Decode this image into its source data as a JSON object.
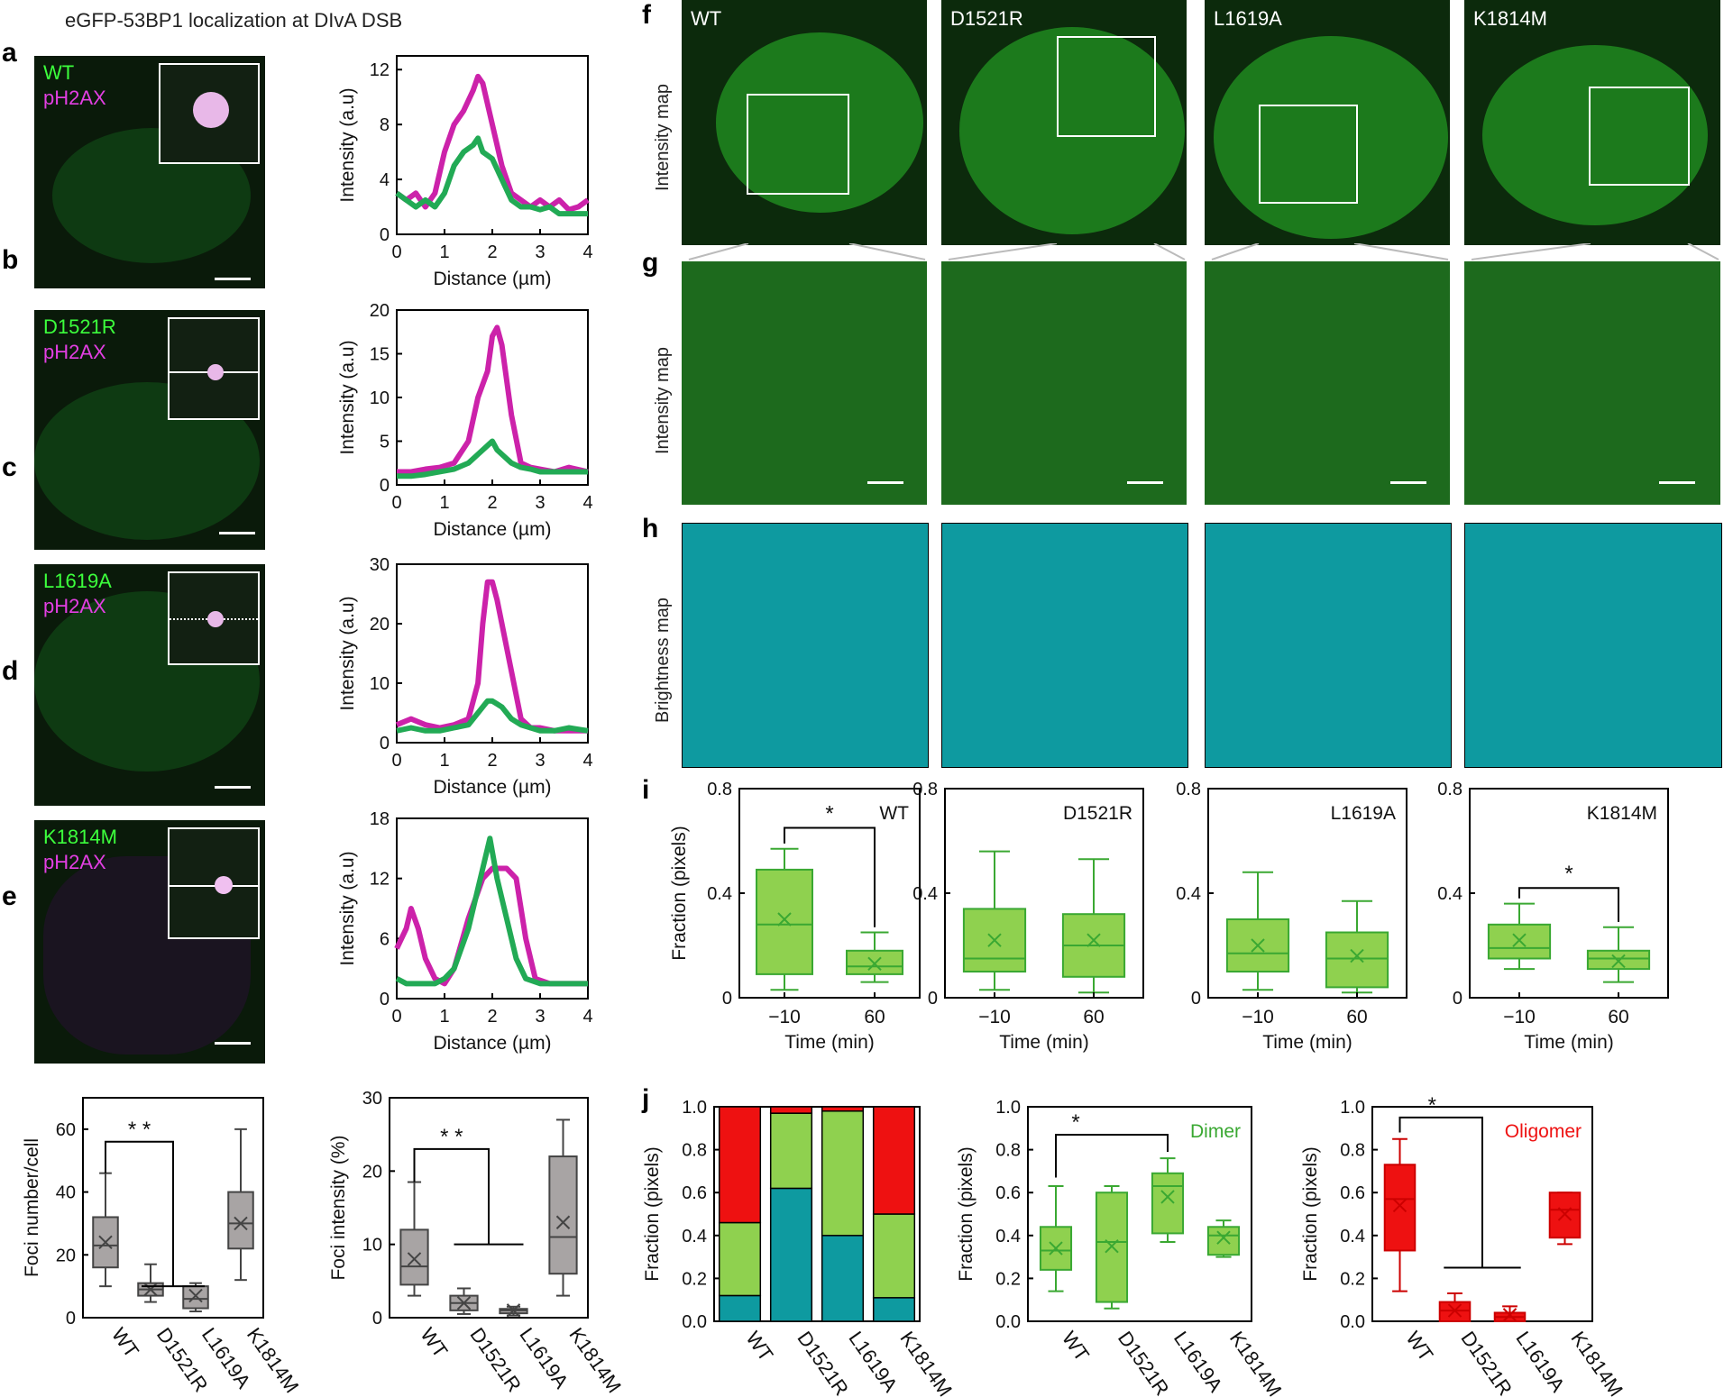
{
  "panel_letters": {
    "a": "a",
    "b": "b",
    "c": "c",
    "d": "d",
    "e": "e",
    "f": "f",
    "g": "g",
    "h": "h",
    "i": "i",
    "j": "j"
  },
  "header_title": "eGFP-53BP1 localization at DIvA DSB",
  "micrographs_left": [
    {
      "green_label": "WT",
      "magenta_label": "pH2AX"
    },
    {
      "green_label": "D1521R",
      "magenta_label": "pH2AX"
    },
    {
      "green_label": "L1619A",
      "magenta_label": "pH2AX"
    },
    {
      "green_label": "K1814M",
      "magenta_label": "pH2AX"
    }
  ],
  "f_labels": [
    "WT",
    "D1521R",
    "L1619A",
    "K1814M"
  ],
  "row_labels": {
    "f": "Intensity map",
    "g": "Intensity map",
    "h": "Brightness map"
  },
  "colors": {
    "green": "#22aa55",
    "magenta": "#cc22aa",
    "box_green": "#8fd14f",
    "box_green_edge": "#3aa832",
    "red": "#ee1111",
    "teal": "#0e9aa0",
    "lime": "#8fd14f",
    "gray_box": "#a8a4a4"
  },
  "chart_data": [
    {
      "id": "a",
      "type": "line",
      "xlabel": "Distance (µm)",
      "ylabel": "Intensity (a.u)",
      "xlim": [
        0,
        4
      ],
      "ylim": [
        0,
        13
      ],
      "xticks": [
        0,
        1,
        2,
        3,
        4
      ],
      "yticks": [
        0,
        4,
        8,
        12
      ],
      "series": [
        {
          "color": "magenta",
          "x": [
            0,
            0.2,
            0.4,
            0.6,
            0.8,
            1.0,
            1.2,
            1.4,
            1.6,
            1.7,
            1.8,
            2.0,
            2.2,
            2.4,
            2.6,
            2.8,
            3.0,
            3.2,
            3.4,
            3.6,
            3.8,
            4.0
          ],
          "y": [
            3,
            2.5,
            3,
            2,
            3,
            6,
            8,
            9,
            10.5,
            11.5,
            11,
            8,
            5,
            3,
            2.5,
            2,
            2.5,
            2,
            2.5,
            1.8,
            2,
            2.5
          ]
        },
        {
          "color": "green",
          "x": [
            0,
            0.2,
            0.4,
            0.6,
            0.8,
            1.0,
            1.2,
            1.4,
            1.6,
            1.7,
            1.8,
            2.0,
            2.2,
            2.4,
            2.6,
            2.8,
            3.0,
            3.2,
            3.4,
            3.6,
            3.8,
            4.0
          ],
          "y": [
            3,
            2.5,
            2,
            2.5,
            2,
            3,
            5,
            6,
            6.5,
            7,
            6,
            5.5,
            4,
            2.5,
            2,
            2,
            1.8,
            2,
            1.5,
            1.5,
            1.5,
            1.5
          ]
        }
      ]
    },
    {
      "id": "b",
      "type": "line",
      "xlabel": "Distance (µm)",
      "ylabel": "Intensity (a.u)",
      "xlim": [
        0,
        4
      ],
      "ylim": [
        0,
        20
      ],
      "xticks": [
        0,
        1,
        2,
        3,
        4
      ],
      "yticks": [
        0,
        5,
        10,
        15,
        20
      ],
      "series": [
        {
          "color": "magenta",
          "x": [
            0,
            0.3,
            0.6,
            0.9,
            1.2,
            1.5,
            1.7,
            1.9,
            2.0,
            2.1,
            2.2,
            2.4,
            2.6,
            2.8,
            3.0,
            3.3,
            3.6,
            4.0
          ],
          "y": [
            1.5,
            1.5,
            1.8,
            2,
            2.5,
            5,
            10,
            13,
            17,
            18,
            16,
            8,
            2.5,
            2,
            1.8,
            1.5,
            2,
            1.5
          ]
        },
        {
          "color": "green",
          "x": [
            0,
            0.3,
            0.6,
            0.9,
            1.2,
            1.5,
            1.7,
            1.9,
            2.0,
            2.1,
            2.2,
            2.4,
            2.6,
            2.8,
            3.0,
            3.3,
            3.6,
            4.0
          ],
          "y": [
            1,
            1,
            1.2,
            1.5,
            1.8,
            2.5,
            3.5,
            4.5,
            5,
            4,
            3.5,
            2.5,
            2,
            1.8,
            1.5,
            1.5,
            1.5,
            1.5
          ]
        }
      ]
    },
    {
      "id": "c",
      "type": "line",
      "xlabel": "Distance (µm)",
      "ylabel": "Intensity (a.u)",
      "xlim": [
        0,
        4
      ],
      "ylim": [
        0,
        30
      ],
      "xticks": [
        0,
        1,
        2,
        3,
        4
      ],
      "yticks": [
        0,
        10,
        20,
        30
      ],
      "series": [
        {
          "color": "magenta",
          "x": [
            0,
            0.3,
            0.6,
            0.9,
            1.2,
            1.5,
            1.7,
            1.8,
            1.9,
            2.0,
            2.1,
            2.2,
            2.4,
            2.6,
            2.8,
            3.0,
            3.3,
            3.6,
            4.0
          ],
          "y": [
            3,
            4,
            3,
            2.5,
            3,
            4,
            10,
            20,
            27,
            27,
            24,
            20,
            12,
            4,
            2.5,
            2.5,
            2,
            2,
            2
          ]
        },
        {
          "color": "green",
          "x": [
            0,
            0.3,
            0.6,
            0.9,
            1.2,
            1.5,
            1.7,
            1.8,
            1.9,
            2.0,
            2.1,
            2.2,
            2.4,
            2.6,
            2.8,
            3.0,
            3.3,
            3.6,
            4.0
          ],
          "y": [
            2,
            2.5,
            2,
            2,
            2.5,
            3,
            5,
            6,
            7,
            7,
            6.5,
            6,
            4,
            3,
            2.5,
            2,
            2,
            2.5,
            2
          ]
        }
      ]
    },
    {
      "id": "d",
      "type": "line",
      "xlabel": "Distance (µm)",
      "ylabel": "Intensity (a.u)",
      "xlim": [
        0,
        4
      ],
      "ylim": [
        0,
        18
      ],
      "xticks": [
        0,
        1,
        2,
        3,
        4
      ],
      "yticks": [
        0,
        6,
        12,
        18
      ],
      "series": [
        {
          "color": "magenta",
          "x": [
            0,
            0.2,
            0.3,
            0.45,
            0.6,
            0.8,
            1.0,
            1.2,
            1.5,
            1.8,
            2.0,
            2.3,
            2.5,
            2.7,
            2.9,
            3.2,
            3.5,
            4.0
          ],
          "y": [
            5,
            7,
            9,
            7,
            4,
            2,
            1.5,
            3,
            8,
            12,
            13,
            13,
            12,
            6,
            2,
            1.5,
            1.5,
            1.5
          ]
        },
        {
          "color": "green",
          "x": [
            0,
            0.2,
            0.4,
            0.6,
            0.8,
            1.0,
            1.2,
            1.5,
            1.8,
            1.95,
            2.1,
            2.3,
            2.5,
            2.7,
            3.0,
            3.5,
            4.0
          ],
          "y": [
            2,
            1.5,
            1.5,
            1.5,
            1.5,
            2,
            3,
            7,
            13,
            16,
            12,
            8,
            4,
            2,
            1.5,
            1.5,
            1.5
          ]
        }
      ]
    },
    {
      "id": "e1",
      "type": "box",
      "ylabel": "Foci number/cell",
      "ylim": [
        0,
        70
      ],
      "yticks": [
        0,
        20,
        40,
        60
      ],
      "categories": [
        "WT",
        "D1521R",
        "L1619A",
        "K1814M"
      ],
      "boxes": [
        {
          "min": 10,
          "q1": 16,
          "median": 23,
          "q3": 32,
          "max": 46,
          "mean": 24
        },
        {
          "min": 5,
          "q1": 7,
          "median": 9,
          "q3": 11,
          "max": 17,
          "mean": 9
        },
        {
          "min": 2,
          "q1": 3,
          "median": 6,
          "q3": 10,
          "max": 11,
          "mean": 7
        },
        {
          "min": 12,
          "q1": 22,
          "median": 30,
          "q3": 40,
          "max": 60,
          "mean": 30
        }
      ],
      "significance": "* *"
    },
    {
      "id": "e2",
      "type": "box",
      "ylabel": "Foci intensity (%)",
      "ylim": [
        0,
        30
      ],
      "yticks": [
        0,
        10,
        20,
        30
      ],
      "categories": [
        "WT",
        "D1521R",
        "L1619A",
        "K1814M"
      ],
      "boxes": [
        {
          "min": 3,
          "q1": 4.5,
          "median": 7,
          "q3": 12,
          "max": 18.5,
          "mean": 8
        },
        {
          "min": 0.5,
          "q1": 1,
          "median": 2,
          "q3": 3,
          "max": 4,
          "mean": 2
        },
        {
          "min": 0.3,
          "q1": 0.6,
          "median": 1,
          "q3": 1.2,
          "max": 1.5,
          "mean": 1
        },
        {
          "min": 3,
          "q1": 6,
          "median": 11,
          "q3": 22,
          "max": 27,
          "mean": 13
        }
      ],
      "significance": "* *"
    },
    {
      "id": "i1",
      "type": "box",
      "label": "WT",
      "ylabel": "Fraction (pixels)",
      "xlabel": "Time (min)",
      "ylim": [
        0,
        0.8
      ],
      "yticks": [
        0,
        0.4,
        0.8
      ],
      "categories": [
        "−10",
        "60"
      ],
      "boxes": [
        {
          "min": 0.03,
          "q1": 0.09,
          "median": 0.28,
          "q3": 0.49,
          "max": 0.57,
          "mean": 0.3
        },
        {
          "min": 0.06,
          "q1": 0.09,
          "median": 0.12,
          "q3": 0.18,
          "max": 0.25,
          "mean": 0.13
        }
      ],
      "significance": "*"
    },
    {
      "id": "i2",
      "type": "box",
      "label": "D1521R",
      "xlabel": "Time (min)",
      "ylim": [
        0,
        0.8
      ],
      "yticks": [
        0,
        0.4,
        0.8
      ],
      "categories": [
        "−10",
        "60"
      ],
      "boxes": [
        {
          "min": 0.03,
          "q1": 0.1,
          "median": 0.15,
          "q3": 0.34,
          "max": 0.56,
          "mean": 0.22
        },
        {
          "min": 0.02,
          "q1": 0.08,
          "median": 0.2,
          "q3": 0.32,
          "max": 0.53,
          "mean": 0.22
        }
      ]
    },
    {
      "id": "i3",
      "type": "box",
      "label": "L1619A",
      "xlabel": "Time (min)",
      "ylim": [
        0,
        0.8
      ],
      "yticks": [
        0,
        0.4,
        0.8
      ],
      "categories": [
        "−10",
        "60"
      ],
      "boxes": [
        {
          "min": 0.03,
          "q1": 0.1,
          "median": 0.17,
          "q3": 0.3,
          "max": 0.48,
          "mean": 0.2
        },
        {
          "min": 0.02,
          "q1": 0.04,
          "median": 0.15,
          "q3": 0.25,
          "max": 0.37,
          "mean": 0.16
        }
      ]
    },
    {
      "id": "i4",
      "type": "box",
      "label": "K1814M",
      "xlabel": "Time (min)",
      "ylim": [
        0,
        0.8
      ],
      "yticks": [
        0,
        0.4,
        0.8
      ],
      "categories": [
        "−10",
        "60"
      ],
      "boxes": [
        {
          "min": 0.11,
          "q1": 0.15,
          "median": 0.19,
          "q3": 0.28,
          "max": 0.36,
          "mean": 0.22
        },
        {
          "min": 0.06,
          "q1": 0.11,
          "median": 0.15,
          "q3": 0.18,
          "max": 0.27,
          "mean": 0.14
        }
      ],
      "significance": "*"
    },
    {
      "id": "j1",
      "type": "bar",
      "stacked": true,
      "ylabel": "Fraction (pixels)",
      "ylim": [
        0,
        1
      ],
      "yticks": [
        0,
        0.2,
        0.4,
        0.6,
        0.8,
        1.0
      ],
      "categories": [
        "WT",
        "D1521R",
        "L1619A",
        "K1814M"
      ],
      "series": [
        {
          "color": "teal",
          "values": [
            0.12,
            0.62,
            0.4,
            0.11
          ]
        },
        {
          "color": "lime",
          "values": [
            0.34,
            0.35,
            0.58,
            0.39
          ]
        },
        {
          "color": "red",
          "values": [
            0.54,
            0.03,
            0.02,
            0.5
          ]
        }
      ]
    },
    {
      "id": "j2",
      "type": "box",
      "label": "Dimer",
      "ylabel": "Fraction (pixels)",
      "ylim": [
        0,
        1
      ],
      "yticks": [
        0,
        0.2,
        0.4,
        0.6,
        0.8,
        1.0
      ],
      "categories": [
        "WT",
        "D1521R",
        "L1619A",
        "K1814M"
      ],
      "boxes": [
        {
          "min": 0.14,
          "q1": 0.24,
          "median": 0.33,
          "q3": 0.44,
          "max": 0.63,
          "mean": 0.34
        },
        {
          "min": 0.06,
          "q1": 0.09,
          "median": 0.37,
          "q3": 0.6,
          "max": 0.63,
          "mean": 0.35
        },
        {
          "min": 0.37,
          "q1": 0.41,
          "median": 0.63,
          "q3": 0.69,
          "max": 0.76,
          "mean": 0.58
        },
        {
          "min": 0.3,
          "q1": 0.31,
          "median": 0.4,
          "q3": 0.44,
          "max": 0.47,
          "mean": 0.39
        }
      ],
      "significance": "*"
    },
    {
      "id": "j3",
      "type": "box",
      "label": "Oligomer",
      "ylabel": "Fraction (pixels)",
      "ylim": [
        0,
        1
      ],
      "yticks": [
        0,
        0.2,
        0.4,
        0.6,
        0.8,
        1.0
      ],
      "categories": [
        "WT",
        "D1521R",
        "L1619A",
        "K1814M"
      ],
      "boxes": [
        {
          "min": 0.14,
          "q1": 0.33,
          "median": 0.57,
          "q3": 0.73,
          "max": 0.85,
          "mean": 0.54
        },
        {
          "min": 0.0,
          "q1": 0.0,
          "median": 0.05,
          "q3": 0.09,
          "max": 0.13,
          "mean": 0.05
        },
        {
          "min": 0.0,
          "q1": 0.0,
          "median": 0.02,
          "q3": 0.04,
          "max": 0.07,
          "mean": 0.03
        },
        {
          "min": 0.36,
          "q1": 0.39,
          "median": 0.52,
          "q3": 0.6,
          "max": 0.6,
          "mean": 0.5
        }
      ],
      "significance": "*"
    }
  ]
}
